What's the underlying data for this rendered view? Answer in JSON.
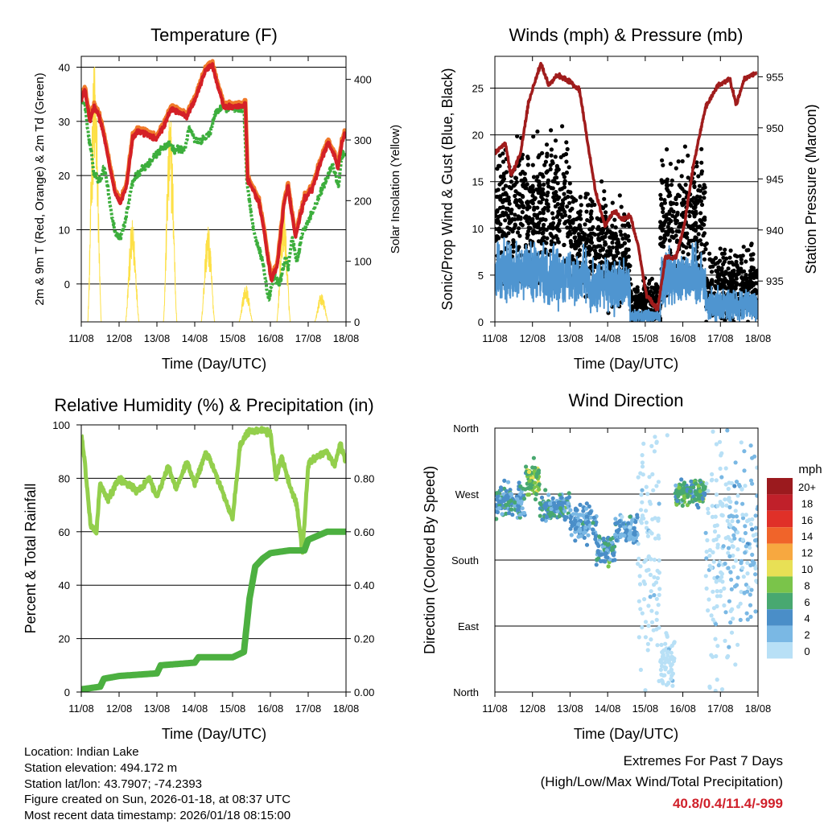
{
  "chart_data": [
    {
      "type": "line",
      "title": "Temperature (F)",
      "xlabel": "Time (Day/UTC)",
      "ylabel": "2m & 9m T (Red, Orange) & 2m Td (Green)",
      "ylabel_right": "Solar Insolation (Yellow)",
      "x_ticks": [
        "11/08",
        "12/08",
        "13/08",
        "14/08",
        "15/08",
        "16/08",
        "17/08",
        "18/08"
      ],
      "y_ticks": [
        0,
        10,
        20,
        30,
        40
      ],
      "y_ticks_right": [
        0,
        100,
        200,
        300,
        400
      ],
      "ylim": [
        -7,
        42
      ],
      "ylim_right": [
        0,
        438
      ],
      "x_unit": "days since 11/08",
      "series": [
        {
          "name": "2m T",
          "color": "#d42027",
          "x": [
            0,
            0.1,
            0.23,
            0.34,
            0.47,
            0.57,
            0.79,
            0.9,
            1.04,
            1.19,
            1.36,
            1.51,
            2.0,
            2.21,
            2.38,
            2.79,
            3.0,
            3.28,
            3.45,
            3.64,
            3.77,
            4.28,
            4.34,
            4.4,
            4.7,
            4.83,
            5.02,
            5.19,
            5.36,
            5.47,
            5.66,
            5.9,
            6.1,
            6.4,
            6.53,
            6.68,
            6.79,
            6.9,
            6.96
          ],
          "y": [
            33.9,
            35.8,
            29.9,
            32.7,
            30.9,
            28.4,
            20.4,
            16.4,
            14.9,
            17.9,
            26.9,
            28.2,
            26.9,
            29.4,
            32.4,
            30.9,
            33.9,
            39.4,
            40.6,
            35.8,
            32.7,
            32.7,
            33.4,
            19.4,
            14.9,
            10,
            0.6,
            3.6,
            14.9,
            17.9,
            8.5,
            15.7,
            17.5,
            23.9,
            26,
            23.9,
            21.5,
            26.4,
            27.5
          ]
        },
        {
          "name": "9m T",
          "color": "#f07a2a"
        },
        {
          "name": "2m Td",
          "color": "#3cae3c",
          "x": [
            0,
            0.1,
            0.2,
            0.35,
            0.5,
            0.6,
            0.7,
            0.8,
            0.9,
            1.04,
            1.2,
            1.36,
            1.6,
            2.0,
            2.3,
            2.5,
            2.75,
            2.85,
            3.0,
            3.2,
            3.4,
            3.55,
            3.7,
            4.3,
            4.38,
            4.55,
            4.8,
            4.95,
            5.1,
            5.25,
            5.4,
            5.47,
            5.58,
            5.7,
            5.85,
            6.1,
            6.4,
            6.65,
            6.8,
            6.9,
            7.0
          ],
          "y": [
            34,
            33,
            27,
            20,
            19,
            22,
            18,
            13,
            9.5,
            8.5,
            13,
            19,
            21,
            24,
            26,
            24.5,
            25,
            29,
            26.5,
            26.5,
            28,
            31.5,
            32.5,
            32.5,
            19,
            10,
            4,
            -3,
            1.5,
            0,
            5,
            3,
            8.5,
            4,
            9.5,
            13,
            18,
            22,
            18,
            24,
            24
          ]
        },
        {
          "name": "Solar Insolation",
          "color": "#fde047",
          "axis": "right",
          "daily_peak_day_offset": 0.35,
          "daily_peaks": [
            435,
            169,
            347,
            161,
            62,
            190,
            48
          ]
        }
      ]
    },
    {
      "type": "scatter",
      "title": "Winds (mph) & Pressure (mb)",
      "xlabel": "Time (Day/UTC)",
      "ylabel": "Sonic/Prop Wind & Gust (Blue, Black)",
      "ylabel_right": "Station Pressure (Maroon)",
      "x_ticks": [
        "11/08",
        "12/08",
        "13/08",
        "14/08",
        "15/08",
        "16/08",
        "17/08",
        "18/08"
      ],
      "y_ticks": [
        0,
        5,
        10,
        15,
        20,
        25
      ],
      "y_ticks_right": [
        935,
        940,
        945,
        950,
        955
      ],
      "ylim": [
        0,
        28.4
      ],
      "ylim_right": [
        931,
        957
      ],
      "series": [
        {
          "name": "Wind (segment means)",
          "color": "#4f95d0",
          "segments": [
            [
              0,
              1,
              5.5,
              2.5
            ],
            [
              1,
              2.5,
              5,
              2.5
            ],
            [
              2.5,
              3.6,
              3.8,
              2.2
            ],
            [
              3.6,
              4.4,
              0.6,
              0.6
            ],
            [
              4.4,
              5.6,
              4.8,
              2.5
            ],
            [
              5.6,
              7,
              1.8,
              1.4
            ]
          ]
        },
        {
          "name": "Gust (segment means)",
          "color": "#000000",
          "segments": [
            [
              0,
              1,
              12,
              4.5
            ],
            [
              1,
              2,
              12.5,
              4.5
            ],
            [
              2,
              3,
              8.5,
              3.5
            ],
            [
              3,
              3.6,
              7,
              3.5
            ],
            [
              3.6,
              4.4,
              2,
              1.5
            ],
            [
              4.4,
              5.6,
              11,
              4.5
            ],
            [
              5.6,
              7,
              4,
              2.5
            ]
          ]
        },
        {
          "name": "Station Pressure",
          "color": "#a01c1c",
          "axis": "right",
          "x": [
            0,
            0.28,
            0.43,
            0.68,
            0.9,
            1.22,
            1.43,
            1.67,
            2.03,
            2.25,
            2.46,
            2.68,
            2.93,
            3.17,
            3.38,
            3.6,
            3.81,
            4.03,
            4.33,
            4.54,
            4.82,
            5.03,
            5.31,
            5.61,
            5.95,
            6.25,
            6.42,
            6.64,
            6.96
          ],
          "y": [
            947.5,
            948.5,
            945.3,
            947.4,
            952.6,
            956.3,
            954.2,
            955.2,
            954.4,
            953.7,
            948.7,
            943.7,
            940.4,
            941.9,
            941,
            941.4,
            938.5,
            933.7,
            932.2,
            937.4,
            937.3,
            940.3,
            946.9,
            952.1,
            954.2,
            954.8,
            952.2,
            954.8,
            955.4
          ]
        }
      ]
    },
    {
      "type": "line",
      "title": "Relative Humidity (%) & Precipitation (in)",
      "xlabel": "Time (Day/UTC)",
      "ylabel": "Percent & Total Rainfall",
      "x_ticks": [
        "11/08",
        "12/08",
        "13/08",
        "14/08",
        "15/08",
        "16/08",
        "17/08",
        "18/08"
      ],
      "y_ticks": [
        0,
        20,
        40,
        60,
        80,
        100
      ],
      "y_ticks_right": [
        "0.00",
        "0.20",
        "0.40",
        "0.60",
        "0.80"
      ],
      "ylim": [
        0,
        100
      ],
      "ylim_right": [
        0,
        1.0
      ],
      "series": [
        {
          "name": "Relative Humidity",
          "color": "#93cf4c",
          "x": [
            0,
            0.1,
            0.25,
            0.4,
            0.5,
            0.7,
            1.0,
            1.5,
            1.8,
            2.0,
            2.3,
            2.5,
            2.8,
            3.0,
            3.3,
            3.6,
            3.8,
            4.0,
            4.2,
            4.4,
            4.8,
            5.0,
            5.15,
            5.3,
            5.5,
            5.7,
            5.85,
            6.0,
            6.2,
            6.5,
            6.7,
            6.85,
            7.0
          ],
          "y": [
            97,
            85,
            62,
            60,
            78,
            72,
            80,
            75,
            80,
            73,
            85,
            76,
            86,
            78,
            90,
            80,
            72,
            65,
            92,
            97,
            98,
            97,
            80,
            88,
            78,
            70,
            52,
            85,
            88,
            90,
            85,
            93,
            85
          ]
        },
        {
          "name": "Total Precipitation",
          "color": "#4cb040",
          "axis": "right",
          "x": [
            0,
            0.5,
            0.6,
            1.0,
            2.0,
            2.1,
            3.0,
            3.1,
            4.0,
            4.3,
            4.45,
            4.6,
            4.8,
            5.0,
            5.5,
            5.9,
            6.0,
            6.5,
            7.0
          ],
          "y": [
            0.01,
            0.02,
            0.05,
            0.06,
            0.07,
            0.1,
            0.11,
            0.13,
            0.13,
            0.15,
            0.35,
            0.47,
            0.5,
            0.52,
            0.53,
            0.53,
            0.57,
            0.6,
            0.6
          ]
        }
      ]
    },
    {
      "type": "scatter",
      "title": "Wind Direction",
      "xlabel": "Time (Day/UTC)",
      "ylabel": "Direction (Colored By Speed)",
      "x_ticks": [
        "11/08",
        "12/08",
        "13/08",
        "14/08",
        "15/08",
        "16/08",
        "17/08",
        "18/08"
      ],
      "y_ticks": [
        "North",
        "East",
        "South",
        "West",
        "North"
      ],
      "ylim": [
        0,
        360
      ],
      "legend": {
        "title": "mph",
        "placement": "right",
        "labels": [
          "20+",
          "18",
          "16",
          "14",
          "12",
          "10",
          "8",
          "6",
          "4",
          "2",
          "0"
        ],
        "colors": [
          "#9b1a1e",
          "#c0202a",
          "#e03028",
          "#f0642a",
          "#f7a840",
          "#e8e055",
          "#7ac44a",
          "#48a870",
          "#4a8ec8",
          "#7ab8e4",
          "#b8e0f6"
        ]
      },
      "clusters": [
        [
          0,
          0.8,
          260,
          15,
          5,
          2
        ],
        [
          0.8,
          1.2,
          290,
          15,
          8,
          2
        ],
        [
          1.2,
          2,
          252,
          12,
          5,
          2
        ],
        [
          2,
          2.7,
          230,
          15,
          4,
          1.5
        ],
        [
          2.7,
          3.2,
          195,
          15,
          5,
          2
        ],
        [
          3.2,
          3.8,
          222,
          15,
          4,
          1.5
        ],
        [
          3.8,
          4.4,
          200,
          130,
          1,
          1
        ],
        [
          4.4,
          4.8,
          40,
          25,
          1,
          1
        ],
        [
          4.8,
          5.6,
          272,
          12,
          7,
          2
        ],
        [
          5.6,
          6.2,
          200,
          120,
          1.5,
          1
        ],
        [
          6.2,
          7,
          200,
          90,
          2,
          1.2
        ]
      ]
    }
  ],
  "footer": {
    "location": "Location: Indian Lake",
    "elevation": "Station elevation: 494.172 m",
    "latlon": "Station lat/lon: 43.7907; -74.2393",
    "created": "Figure created on Sun, 2026-01-18, at 08:37 UTC",
    "recent": "Most recent data timestamp: 2026/01/18 08:15:00",
    "extremes_title": "Extremes For Past 7 Days",
    "extremes_sub": "(High/Low/Max Wind/Total Precipitation)",
    "extremes_values": "40.8/0.4/11.4/-999",
    "extremes_color": "#d0202a"
  }
}
